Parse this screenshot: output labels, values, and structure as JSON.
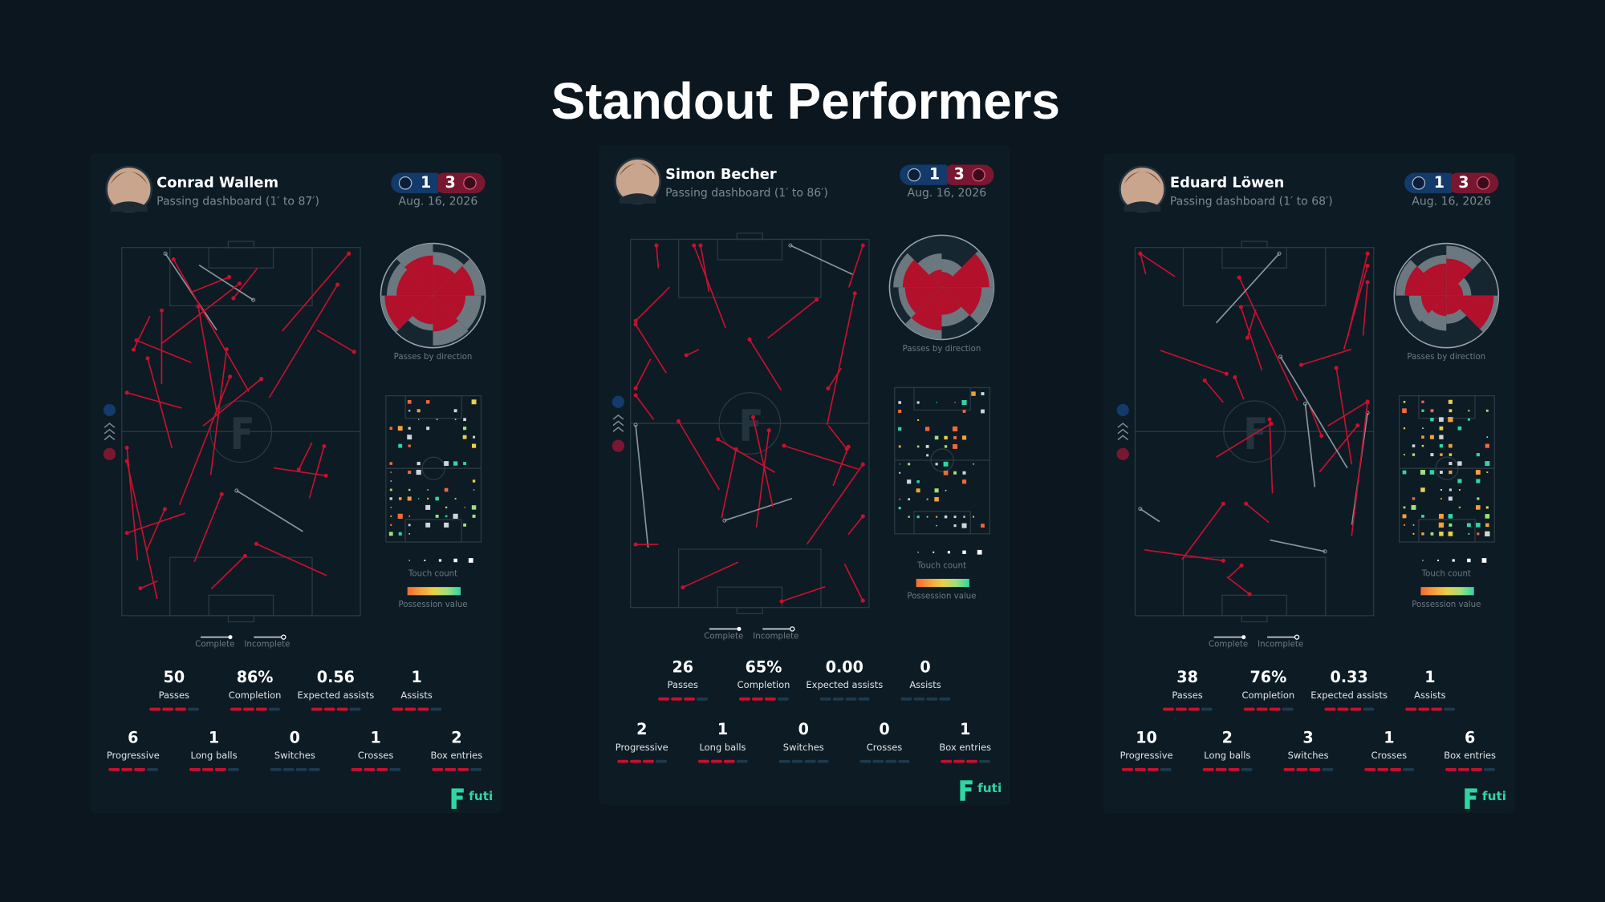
{
  "title": "Standout Performers",
  "legend": {
    "direction": "Passes by direction",
    "touch": "Touch count",
    "value": "Possession value",
    "complete": "Complete",
    "incomplete": "Incomplete"
  },
  "brand": "futi",
  "players": [
    {
      "name": "Conrad Wallem",
      "subtitle": "Passing dashboard (1′ to 87′)",
      "home_score": 1,
      "away_score": 3,
      "date": "Aug. 16, 2026",
      "stats": [
        {
          "value": "50",
          "label": "Passes"
        },
        {
          "value": "86%",
          "label": "Completion"
        },
        {
          "value": "0.56",
          "label": "Expected assists"
        },
        {
          "value": "1",
          "label": "Assists"
        },
        {
          "value": "6",
          "label": "Progressive"
        },
        {
          "value": "1",
          "label": "Long balls"
        },
        {
          "value": "0",
          "label": "Switches"
        },
        {
          "value": "1",
          "label": "Crosses"
        },
        {
          "value": "2",
          "label": "Box entries"
        }
      ]
    },
    {
      "name": "Simon Becher",
      "subtitle": "Passing dashboard (1′ to 86′)",
      "home_score": 1,
      "away_score": 3,
      "date": "Aug. 16, 2026",
      "stats": [
        {
          "value": "26",
          "label": "Passes"
        },
        {
          "value": "65%",
          "label": "Completion"
        },
        {
          "value": "0.00",
          "label": "Expected assists"
        },
        {
          "value": "0",
          "label": "Assists"
        },
        {
          "value": "2",
          "label": "Progressive"
        },
        {
          "value": "1",
          "label": "Long balls"
        },
        {
          "value": "0",
          "label": "Switches"
        },
        {
          "value": "0",
          "label": "Crosses"
        },
        {
          "value": "1",
          "label": "Box entries"
        }
      ]
    },
    {
      "name": "Eduard Löwen",
      "subtitle": "Passing dashboard (1′ to 68′)",
      "home_score": 1,
      "away_score": 3,
      "date": "Aug. 16, 2026",
      "stats": [
        {
          "value": "38",
          "label": "Passes"
        },
        {
          "value": "76%",
          "label": "Completion"
        },
        {
          "value": "0.33",
          "label": "Expected assists"
        },
        {
          "value": "1",
          "label": "Assists"
        },
        {
          "value": "10",
          "label": "Progressive"
        },
        {
          "value": "2",
          "label": "Long balls"
        },
        {
          "value": "3",
          "label": "Switches"
        },
        {
          "value": "1",
          "label": "Crosses"
        },
        {
          "value": "6",
          "label": "Box entries"
        }
      ]
    }
  ]
}
